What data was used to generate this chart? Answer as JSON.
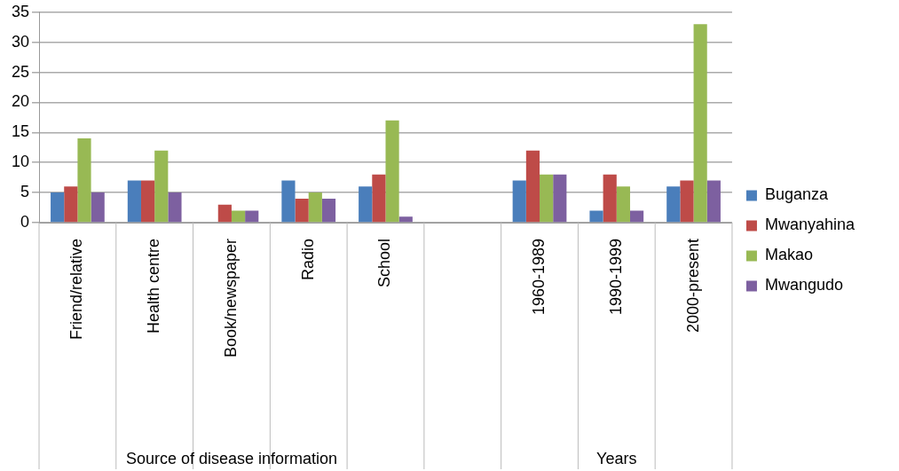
{
  "chart_data": {
    "type": "bar",
    "categories": [
      "Friend/relative",
      "Health centre",
      "Book/newspaper",
      "Radio",
      "School",
      null,
      "1960-1989",
      "1990-1999",
      "2000-present"
    ],
    "series": [
      {
        "name": "Buganza",
        "color": "#4a7ebb",
        "values": [
          5,
          7,
          0,
          7,
          6,
          null,
          7,
          2,
          6
        ]
      },
      {
        "name": "Mwanyahina",
        "color": "#be4b48",
        "values": [
          6,
          7,
          3,
          4,
          8,
          null,
          12,
          8,
          7
        ]
      },
      {
        "name": "Makao",
        "color": "#98b954",
        "values": [
          14,
          12,
          2,
          5,
          17,
          null,
          8,
          6,
          33
        ]
      },
      {
        "name": "Mwangudo",
        "color": "#7d60a0",
        "values": [
          5,
          5,
          2,
          4,
          1,
          null,
          8,
          2,
          7
        ]
      }
    ],
    "ylim": [
      0,
      35
    ],
    "yticks": [
      0,
      5,
      10,
      15,
      20,
      25,
      30,
      35
    ],
    "grid": "y",
    "legend": "right",
    "annotations": [
      "Source of disease information",
      "Years"
    ]
  }
}
